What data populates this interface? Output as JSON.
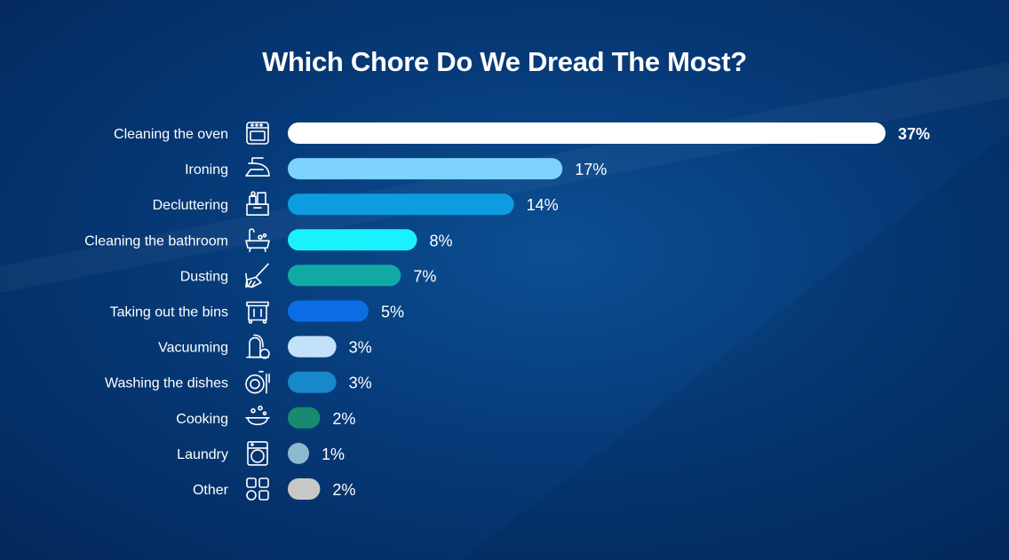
{
  "chart_data": {
    "type": "bar",
    "orientation": "horizontal",
    "title": "Which Chore Do We Dread The Most?",
    "categories": [
      "Cleaning the oven",
      "Ironing",
      "Decluttering",
      "Cleaning the bathroom",
      "Dusting",
      "Taking out the bins",
      "Vacuuming",
      "Washing the dishes",
      "Cooking",
      "Laundry",
      "Other"
    ],
    "values": [
      37,
      17,
      14,
      8,
      7,
      5,
      3,
      3,
      2,
      1,
      2
    ],
    "value_labels": [
      "37%",
      "17%",
      "14%",
      "8%",
      "7%",
      "5%",
      "3%",
      "3%",
      "2%",
      "1%",
      "2%"
    ],
    "icons": [
      "oven-icon",
      "iron-icon",
      "declutter-box-icon",
      "bathtub-icon",
      "broom-icon",
      "bin-icon",
      "vacuum-icon",
      "dishes-icon",
      "cooking-pot-icon",
      "washing-machine-icon",
      "grid-icon"
    ],
    "bar_colors": [
      "#ffffff",
      "#7dd3fb",
      "#0d9ce0",
      "#19f2fb",
      "#12a9a5",
      "#0a6de3",
      "#c4e1fb",
      "#1788c9",
      "#178a6f",
      "#8db9cf",
      "#c8c8c8"
    ],
    "unit": "%",
    "background": "#063a78"
  }
}
